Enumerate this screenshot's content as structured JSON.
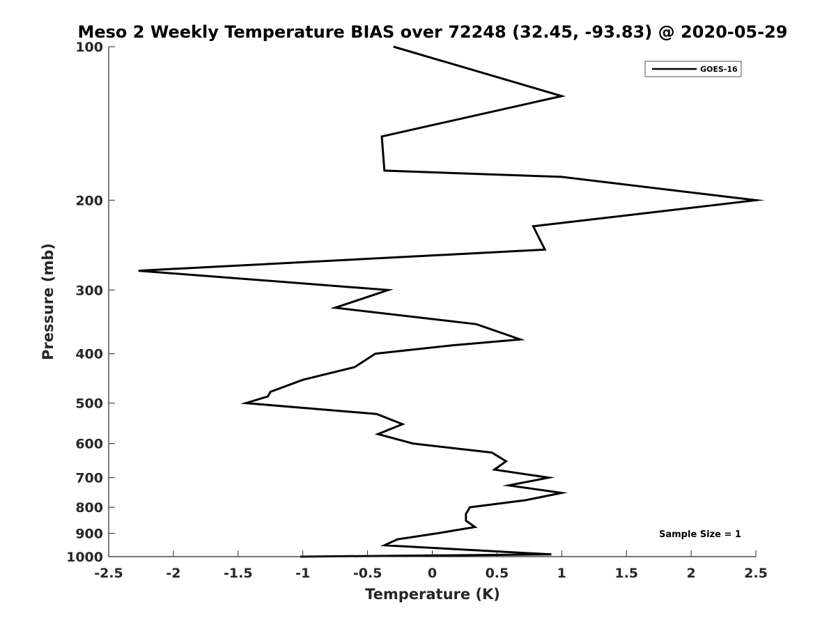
{
  "chart_data": {
    "type": "line",
    "title": "Meso 2 Weekly Temperature BIAS over 72248 (32.45, -93.83) @ 2020-05-29",
    "xlabel": "Temperature (K)",
    "ylabel": "Pressure (mb)",
    "xlim": [
      -2.5,
      2.5
    ],
    "ylim": [
      100,
      1000
    ],
    "y_scale": "log",
    "y_reversed": true,
    "x_ticks": [
      -2.5,
      -2,
      -1.5,
      -1,
      -0.5,
      0,
      0.5,
      1,
      1.5,
      2,
      2.5
    ],
    "x_tick_labels": [
      "-2.5",
      "-2",
      "-1.5",
      "-1",
      "-0.5",
      "0",
      "0.5",
      "1",
      "1.5",
      "2",
      "2.5"
    ],
    "y_ticks": [
      100,
      200,
      300,
      400,
      500,
      600,
      700,
      800,
      900,
      1000
    ],
    "y_tick_labels": [
      "100",
      "200",
      "300",
      "400",
      "500",
      "600",
      "700",
      "800",
      "900",
      "1000"
    ],
    "grid": false,
    "legend_position": "top-right",
    "annotation": "Sample Size = 1",
    "series": [
      {
        "name": "GOES-16",
        "color": "#000000",
        "points": [
          [
            -0.3,
            100
          ],
          [
            1.0,
            125
          ],
          [
            -0.39,
            150
          ],
          [
            -0.37,
            175
          ],
          [
            1.0,
            180
          ],
          [
            2.5,
            200
          ],
          [
            0.78,
            225
          ],
          [
            0.87,
            250
          ],
          [
            -2.27,
            275
          ],
          [
            -0.34,
            300
          ],
          [
            -0.75,
            325
          ],
          [
            0.34,
            350
          ],
          [
            0.68,
            375
          ],
          [
            0.16,
            385
          ],
          [
            -0.44,
            400
          ],
          [
            -0.6,
            425
          ],
          [
            -1.0,
            450
          ],
          [
            -1.25,
            475
          ],
          [
            -1.27,
            485
          ],
          [
            -1.44,
            500
          ],
          [
            -0.43,
            525
          ],
          [
            -0.23,
            550
          ],
          [
            -0.42,
            575
          ],
          [
            -0.15,
            600
          ],
          [
            0.46,
            625
          ],
          [
            0.57,
            650
          ],
          [
            0.48,
            675
          ],
          [
            0.9,
            700
          ],
          [
            0.59,
            725
          ],
          [
            1.0,
            750
          ],
          [
            0.72,
            775
          ],
          [
            0.29,
            800
          ],
          [
            0.26,
            825
          ],
          [
            0.26,
            850
          ],
          [
            0.33,
            875
          ],
          [
            0.04,
            900
          ],
          [
            -0.27,
            925
          ],
          [
            -0.37,
            950
          ],
          [
            0.45,
            975
          ],
          [
            0.92,
            990
          ],
          [
            -1.02,
            1000
          ]
        ]
      }
    ]
  }
}
